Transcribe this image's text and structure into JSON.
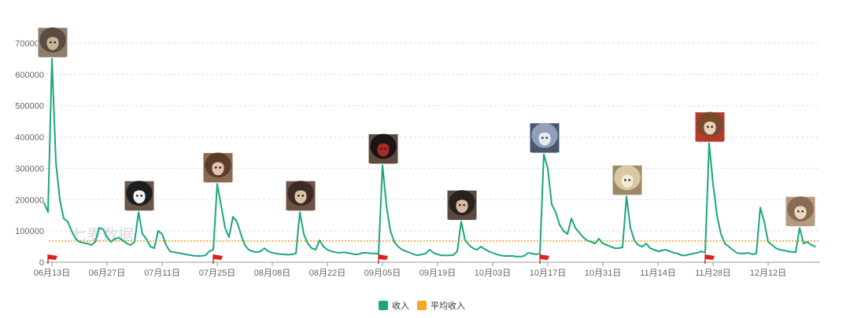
{
  "chart_data": {
    "type": "line",
    "x_ticks": [
      "06月13日",
      "06月27日",
      "07月11日",
      "07月25日",
      "08月08日",
      "08月22日",
      "09月05日",
      "09月19日",
      "10月03日",
      "10月17日",
      "10月31日",
      "11月14日",
      "11月28日",
      "12月12日"
    ],
    "y_ticks": [
      "0",
      "100000",
      "200000",
      "300000",
      "400000",
      "500000",
      "600000",
      "700000"
    ],
    "ylim": [
      0,
      700000
    ],
    "grid": true,
    "legend_position": "bottom",
    "watermark": "七麦数据",
    "series": [
      {
        "name": "收入",
        "color": "#1aa67e",
        "points": [
          [
            -2,
            190000
          ],
          [
            -1,
            160000
          ],
          [
            0,
            650000
          ],
          [
            1,
            320000
          ],
          [
            2,
            200000
          ],
          [
            3,
            140000
          ],
          [
            4,
            130000
          ],
          [
            5,
            100000
          ],
          [
            6,
            75000
          ],
          [
            7,
            65000
          ],
          [
            8,
            62000
          ],
          [
            9,
            60000
          ],
          [
            10,
            55000
          ],
          [
            11,
            65000
          ],
          [
            12,
            110000
          ],
          [
            13,
            105000
          ],
          [
            14,
            80000
          ],
          [
            15,
            65000
          ],
          [
            16,
            75000
          ],
          [
            17,
            78000
          ],
          [
            18,
            70000
          ],
          [
            19,
            60000
          ],
          [
            20,
            55000
          ],
          [
            21,
            65000
          ],
          [
            22,
            160000
          ],
          [
            23,
            90000
          ],
          [
            24,
            75000
          ],
          [
            25,
            50000
          ],
          [
            26,
            45000
          ],
          [
            27,
            100000
          ],
          [
            28,
            90000
          ],
          [
            29,
            55000
          ],
          [
            30,
            35000
          ],
          [
            31,
            32000
          ],
          [
            32,
            30000
          ],
          [
            33,
            28000
          ],
          [
            34,
            25000
          ],
          [
            35,
            23000
          ],
          [
            36,
            21000
          ],
          [
            37,
            20000
          ],
          [
            38,
            20000
          ],
          [
            39,
            22000
          ],
          [
            40,
            35000
          ],
          [
            41,
            40000
          ],
          [
            42,
            250000
          ],
          [
            43,
            180000
          ],
          [
            44,
            110000
          ],
          [
            45,
            80000
          ],
          [
            46,
            145000
          ],
          [
            47,
            130000
          ],
          [
            48,
            90000
          ],
          [
            49,
            55000
          ],
          [
            50,
            40000
          ],
          [
            51,
            35000
          ],
          [
            52,
            32000
          ],
          [
            53,
            35000
          ],
          [
            54,
            45000
          ],
          [
            55,
            35000
          ],
          [
            56,
            30000
          ],
          [
            57,
            28000
          ],
          [
            58,
            26000
          ],
          [
            59,
            25000
          ],
          [
            60,
            24000
          ],
          [
            61,
            25000
          ],
          [
            62,
            28000
          ],
          [
            63,
            160000
          ],
          [
            64,
            90000
          ],
          [
            65,
            60000
          ],
          [
            66,
            45000
          ],
          [
            67,
            40000
          ],
          [
            68,
            70000
          ],
          [
            69,
            50000
          ],
          [
            70,
            40000
          ],
          [
            71,
            35000
          ],
          [
            72,
            32000
          ],
          [
            73,
            30000
          ],
          [
            74,
            32000
          ],
          [
            75,
            30000
          ],
          [
            76,
            28000
          ],
          [
            77,
            25000
          ],
          [
            78,
            26000
          ],
          [
            79,
            30000
          ],
          [
            80,
            30000
          ],
          [
            81,
            28000
          ],
          [
            82,
            28000
          ],
          [
            83,
            27000
          ],
          [
            84,
            310000
          ],
          [
            85,
            180000
          ],
          [
            86,
            100000
          ],
          [
            87,
            65000
          ],
          [
            88,
            50000
          ],
          [
            89,
            40000
          ],
          [
            90,
            35000
          ],
          [
            91,
            30000
          ],
          [
            92,
            25000
          ],
          [
            93,
            22000
          ],
          [
            94,
            25000
          ],
          [
            95,
            28000
          ],
          [
            96,
            40000
          ],
          [
            97,
            30000
          ],
          [
            98,
            25000
          ],
          [
            99,
            22000
          ],
          [
            100,
            22000
          ],
          [
            101,
            22000
          ],
          [
            102,
            23000
          ],
          [
            103,
            35000
          ],
          [
            104,
            130000
          ],
          [
            105,
            70000
          ],
          [
            106,
            55000
          ],
          [
            107,
            45000
          ],
          [
            108,
            40000
          ],
          [
            109,
            50000
          ],
          [
            110,
            42000
          ],
          [
            111,
            35000
          ],
          [
            112,
            30000
          ],
          [
            113,
            25000
          ],
          [
            114,
            22000
          ],
          [
            115,
            20000
          ],
          [
            116,
            20000
          ],
          [
            117,
            20000
          ],
          [
            118,
            18000
          ],
          [
            119,
            18000
          ],
          [
            120,
            20000
          ],
          [
            121,
            30000
          ],
          [
            122,
            28000
          ],
          [
            123,
            25000
          ],
          [
            124,
            28000
          ],
          [
            125,
            345000
          ],
          [
            126,
            300000
          ],
          [
            127,
            185000
          ],
          [
            128,
            160000
          ],
          [
            129,
            120000
          ],
          [
            130,
            100000
          ],
          [
            131,
            90000
          ],
          [
            132,
            140000
          ],
          [
            133,
            110000
          ],
          [
            134,
            95000
          ],
          [
            135,
            80000
          ],
          [
            136,
            70000
          ],
          [
            137,
            65000
          ],
          [
            138,
            60000
          ],
          [
            139,
            75000
          ],
          [
            140,
            60000
          ],
          [
            141,
            55000
          ],
          [
            142,
            50000
          ],
          [
            143,
            45000
          ],
          [
            144,
            45000
          ],
          [
            145,
            48000
          ],
          [
            146,
            210000
          ],
          [
            147,
            110000
          ],
          [
            148,
            70000
          ],
          [
            149,
            55000
          ],
          [
            150,
            50000
          ],
          [
            151,
            60000
          ],
          [
            152,
            45000
          ],
          [
            153,
            40000
          ],
          [
            154,
            35000
          ],
          [
            155,
            38000
          ],
          [
            156,
            40000
          ],
          [
            157,
            35000
          ],
          [
            158,
            30000
          ],
          [
            159,
            28000
          ],
          [
            160,
            22000
          ],
          [
            161,
            22000
          ],
          [
            162,
            25000
          ],
          [
            163,
            28000
          ],
          [
            164,
            30000
          ],
          [
            165,
            35000
          ],
          [
            166,
            30000
          ],
          [
            167,
            380000
          ],
          [
            168,
            250000
          ],
          [
            169,
            150000
          ],
          [
            170,
            90000
          ],
          [
            171,
            60000
          ],
          [
            172,
            50000
          ],
          [
            173,
            40000
          ],
          [
            174,
            30000
          ],
          [
            175,
            28000
          ],
          [
            176,
            28000
          ],
          [
            177,
            30000
          ],
          [
            178,
            25000
          ],
          [
            179,
            28000
          ],
          [
            180,
            175000
          ],
          [
            181,
            130000
          ],
          [
            182,
            65000
          ],
          [
            183,
            55000
          ],
          [
            184,
            45000
          ],
          [
            185,
            40000
          ],
          [
            186,
            38000
          ],
          [
            187,
            35000
          ],
          [
            188,
            33000
          ],
          [
            189,
            32000
          ],
          [
            190,
            110000
          ],
          [
            191,
            60000
          ],
          [
            192,
            65000
          ],
          [
            193,
            55000
          ],
          [
            194,
            50000
          ]
        ]
      },
      {
        "name": "平均收入",
        "color": "#f5a623",
        "value": 68000
      }
    ],
    "event_flags": [
      0,
      42,
      84,
      125,
      167
    ],
    "event_flag_color": "#e02020",
    "character_markers": [
      {
        "day": 0,
        "name": "gray-hair-cap-character-icon",
        "palette": [
          "#5a4c40",
          "#c9b49a",
          "#8f7d6b"
        ]
      },
      {
        "day": 22,
        "name": "black-white-dog-icon",
        "palette": [
          "#1e1e1e",
          "#f2f2f2",
          "#6a5548"
        ]
      },
      {
        "day": 42,
        "name": "brown-curly-hair-character-icon",
        "palette": [
          "#5a3d2b",
          "#e0c6ae",
          "#8a6a50"
        ]
      },
      {
        "day": 63,
        "name": "dark-hair-character-icon",
        "palette": [
          "#3b2b24",
          "#dbc1a8",
          "#6e5344"
        ]
      },
      {
        "day": 84,
        "name": "black-red-character-icon",
        "palette": [
          "#1a1414",
          "#a82a22",
          "#5e4a40"
        ]
      },
      {
        "day": 104,
        "name": "dark-hair-bun-character-icon",
        "palette": [
          "#2a2220",
          "#d7bc9f",
          "#5c4840"
        ]
      },
      {
        "day": 125,
        "name": "silver-hair-character-icon",
        "palette": [
          "#8fa0b8",
          "#e6ebf2",
          "#4a5670"
        ]
      },
      {
        "day": 146,
        "name": "blonde-hair-character-icon",
        "palette": [
          "#d9c9a0",
          "#f3ead8",
          "#9c8a66"
        ]
      },
      {
        "day": 167,
        "name": "auburn-hair-character-icon",
        "palette": [
          "#7a4a2c",
          "#e8d2bc",
          "#b53a2a"
        ]
      },
      {
        "day": 190,
        "name": "light-brown-hair-character-icon",
        "palette": [
          "#8c6a52",
          "#e9d8c4",
          "#b59a82"
        ]
      }
    ]
  }
}
